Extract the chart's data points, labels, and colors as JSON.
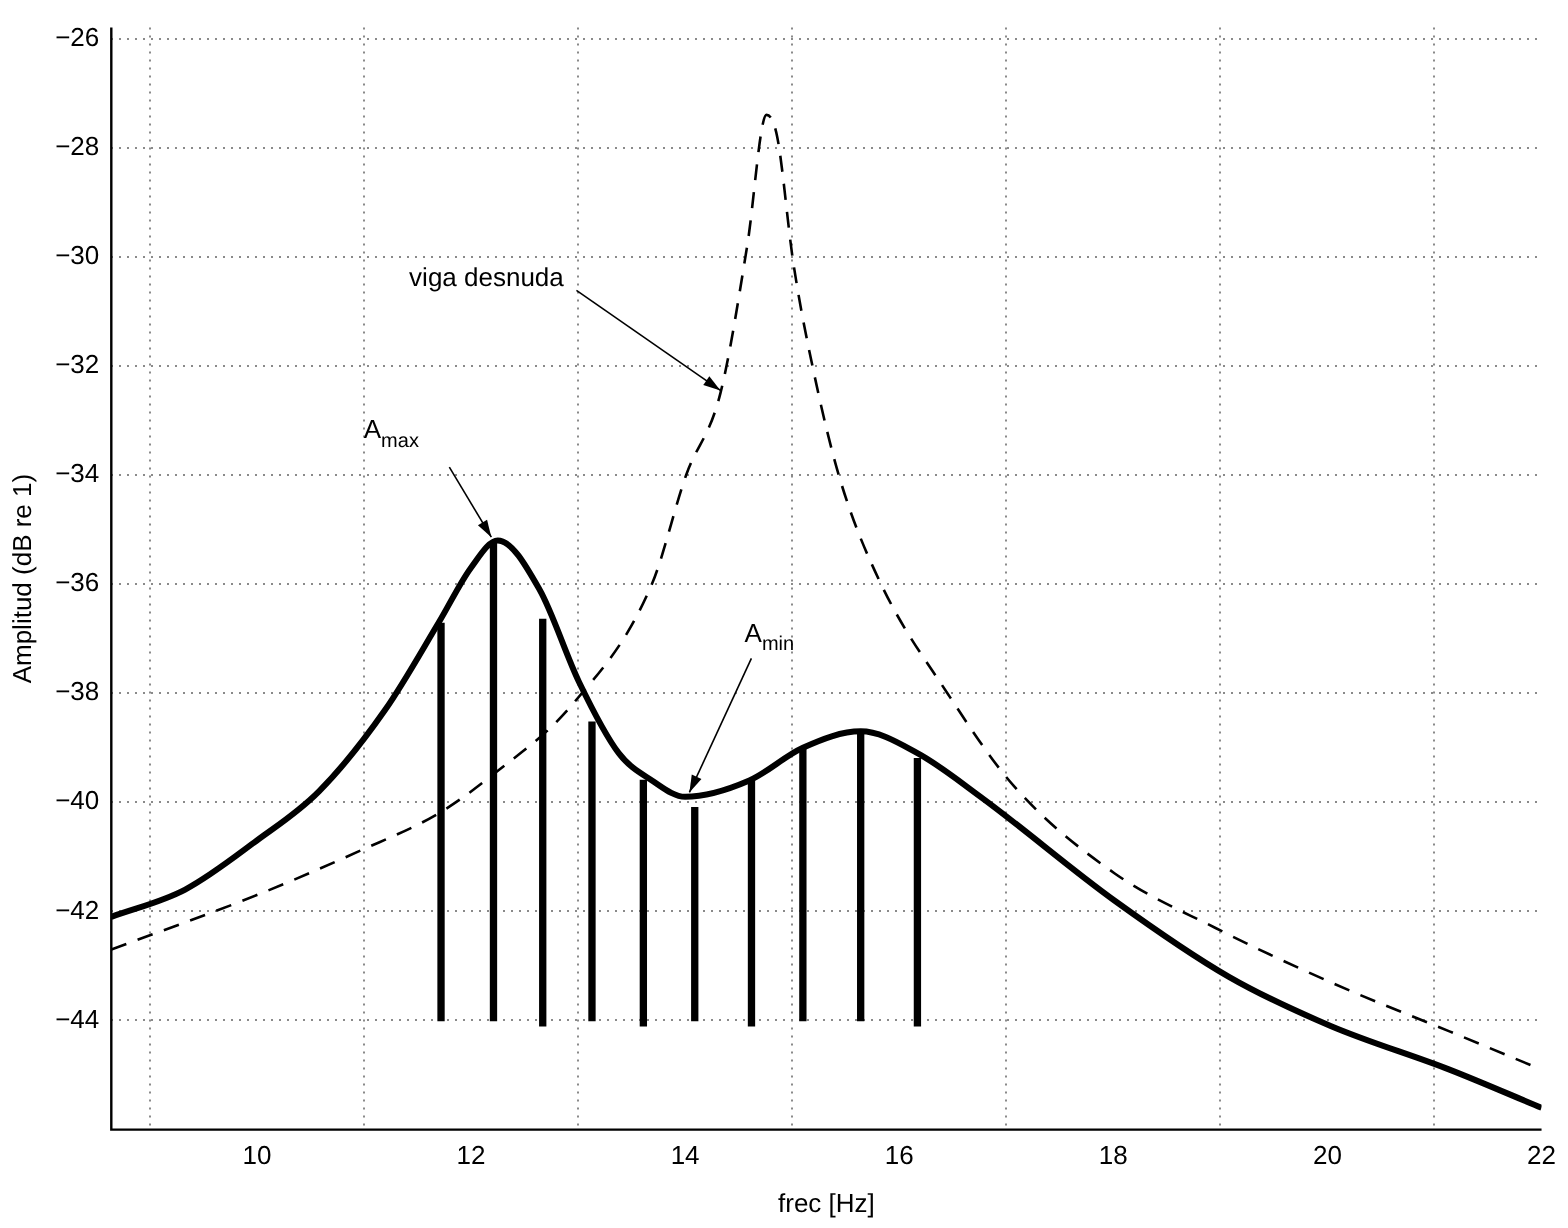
{
  "chart_data": {
    "type": "line",
    "xlabel": "frec [Hz]",
    "ylabel": "Amplitud (dB re 1)",
    "xlim": [
      8.64,
      22
    ],
    "xticks": [
      10,
      12,
      14,
      16,
      18,
      20,
      22
    ],
    "ylim": [
      -46,
      -25.8
    ],
    "yticks": [
      -44,
      -42,
      -40,
      -38,
      -36,
      -34,
      -32,
      -30,
      -28,
      -26
    ],
    "grid": true,
    "legend": false,
    "marker": "none",
    "series": [
      {
        "color": "#000000",
        "line_style": "solid",
        "x": [
          8.64,
          9.33,
          10,
          10.58,
          11.2,
          11.7,
          12.0,
          12.25,
          12.64,
          13.01,
          13.38,
          13.69,
          14.0,
          14.6,
          15.1,
          15.64,
          16.17,
          16.76,
          18.01,
          19.08,
          20.03,
          21.14,
          22
        ],
        "values": [
          -42.1,
          -41.6,
          -40.7,
          -39.8,
          -38.3,
          -36.7,
          -35.7,
          -35.2,
          -36.1,
          -37.8,
          -39.1,
          -39.6,
          -39.9,
          -39.6,
          -39.0,
          -38.7,
          -39.1,
          -39.9,
          -41.8,
          -43.2,
          -44.1,
          -44.9,
          -45.6
        ]
      },
      {
        "color": "#000000",
        "line_style": "dashed",
        "x": [
          8.64,
          10,
          10.95,
          11.7,
          12.2,
          12.95,
          13.69,
          14.01,
          14.33,
          14.58,
          14.76,
          14.86,
          15.01,
          15.2,
          15.45,
          15.83,
          16.45,
          17.07,
          18.01,
          18.95,
          20.03,
          21.14,
          22
        ],
        "values": [
          -42.7,
          -41.7,
          -40.9,
          -40.2,
          -39.5,
          -38.2,
          -36.0,
          -34.0,
          -32.5,
          -29.8,
          -27.4,
          -27.8,
          -30.1,
          -32.1,
          -34.1,
          -36.0,
          -38.0,
          -39.7,
          -41.3,
          -42.3,
          -43.3,
          -44.2,
          -44.9
        ]
      },
      {
        "type": "bar",
        "color": "#000000",
        "x": [
          11.72,
          12.21,
          12.67,
          13.13,
          13.61,
          14.09,
          14.62,
          15.1,
          15.64,
          16.17
        ],
        "base": [
          -44,
          -44,
          -44.1,
          -44,
          -44.1,
          -44,
          -44.1,
          -44,
          -44,
          -44.1
        ],
        "values": [
          7.28,
          8.75,
          7.45,
          5.47,
          4.5,
          3.9,
          4.5,
          5.0,
          5.3,
          4.9
        ]
      }
    ],
    "annotations": [
      {
        "text": "viga desnuda",
        "x": 14.33,
        "y": -32.45
      },
      {
        "text": "A$_{max}$",
        "x": 12.19,
        "y": -35.14
      },
      {
        "text": "A$_{min}$",
        "x": 14.04,
        "y": -39.82
      }
    ]
  }
}
